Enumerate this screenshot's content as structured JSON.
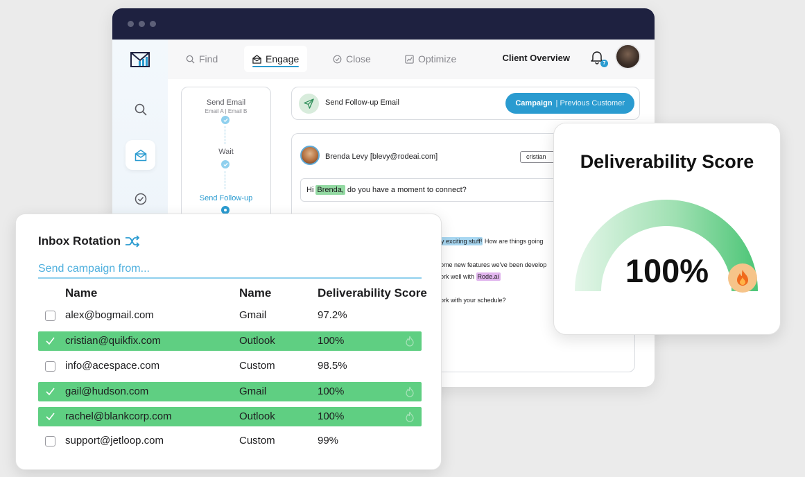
{
  "nav": {
    "tabs": [
      {
        "label": "Find",
        "icon": "search-icon"
      },
      {
        "label": "Engage",
        "icon": "envelope-open-icon"
      },
      {
        "label": "Close",
        "icon": "check-circle-icon"
      },
      {
        "label": "Optimize",
        "icon": "chart-icon"
      }
    ],
    "client_overview": "Client Overview",
    "notification_count": "7"
  },
  "workflow": {
    "steps": [
      {
        "title": "Send Email",
        "subtitle": "Email A | Email B"
      },
      {
        "title": "Wait",
        "subtitle": ""
      },
      {
        "title": "Send Follow-up",
        "subtitle": ""
      }
    ]
  },
  "action": {
    "label": "Send Follow-up Email",
    "campaign_label": "Campaign",
    "campaign_value": "| Previous Customer"
  },
  "email": {
    "sender": "Brenda Levy [blevy@rodeai.com]",
    "recipient_chip": "cristian",
    "subject_prefix": "Hi",
    "subject_name": "Brenda,",
    "subject_rest": "do you have a moment to connect?",
    "body_hl_1": "y exciting stuff!",
    "body_line_1_rest": "How are things going",
    "body_line_2": "ome new features we've been develop",
    "body_line_3_prefix": "ork well with",
    "body_hl_2": "Rode.ai",
    "body_line_4": "ork with your schedule?"
  },
  "score": {
    "title": "Deliverability Score",
    "value": "100%",
    "fraction": 1.0,
    "colors": {
      "gauge_start": "#d9f3e0",
      "gauge_end": "#5fcf82",
      "fire": "#f06a1d"
    }
  },
  "inbox": {
    "title": "Inbox Rotation",
    "placeholder": "Send campaign from...",
    "columns": [
      "Name",
      "Name",
      "Deliverability Score"
    ],
    "rows": [
      {
        "email": "alex@bogmail.com",
        "provider": "Gmail",
        "score": "97.2%",
        "selected": false
      },
      {
        "email": "cristian@quikfix.com",
        "provider": "Outlook",
        "score": "100%",
        "selected": true
      },
      {
        "email": "info@acespace.com",
        "provider": "Custom",
        "score": "98.5%",
        "selected": false
      },
      {
        "email": "gail@hudson.com",
        "provider": "Gmail",
        "score": "100%",
        "selected": true
      },
      {
        "email": "rachel@blankcorp.com",
        "provider": "Outlook",
        "score": "100%",
        "selected": true
      },
      {
        "email": "support@jetloop.com",
        "provider": "Custom",
        "score": "99%",
        "selected": false
      }
    ]
  },
  "colors": {
    "accent": "#2a9bd0",
    "selected_row": "#5fcf82",
    "titlebar": "#1e2140"
  }
}
